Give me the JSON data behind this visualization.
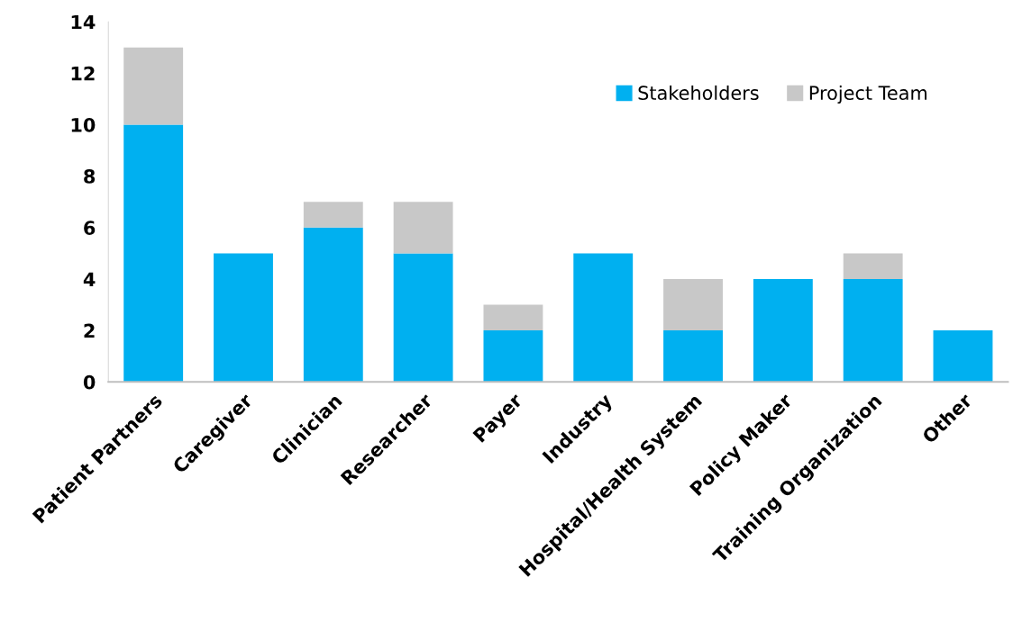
{
  "chart_data": {
    "type": "bar",
    "stacked": true,
    "categories": [
      "Patient Partners",
      "Caregiver",
      "Clinician",
      "Researcher",
      "Payer",
      "Industry",
      "Hospital/Health System",
      "Policy Maker",
      "Training Organization",
      "Other"
    ],
    "series": [
      {
        "name": "Stakeholders",
        "color": "#00b0f0",
        "values": [
          10,
          5,
          6,
          5,
          2,
          5,
          2,
          4,
          4,
          2
        ]
      },
      {
        "name": "Project Team",
        "color": "#c8c8c8",
        "values": [
          3,
          0,
          1,
          2,
          1,
          0,
          2,
          0,
          1,
          0
        ]
      }
    ],
    "ylim": [
      0,
      14
    ],
    "yticks": [
      0,
      2,
      4,
      6,
      8,
      10,
      12,
      14
    ],
    "grid": false,
    "legend": "top right"
  }
}
